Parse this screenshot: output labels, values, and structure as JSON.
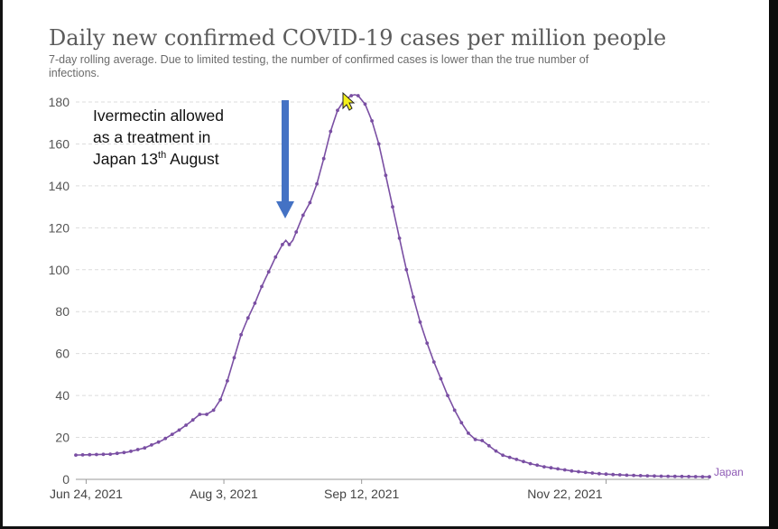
{
  "chart_data": {
    "type": "line",
    "title": "Daily new confirmed COVID-19 cases per million people",
    "subtitle_line1": "7-day rolling average. Due to limited testing, the number of confirmed cases is lower than the true number of",
    "subtitle_line2": "infections.",
    "x_start": "2021-06-21",
    "x_tick_labels": [
      "Jun 24, 2021",
      "Aug 3, 2021",
      "Sep 12, 2021",
      "Nov 22, 2021"
    ],
    "ylim": [
      0,
      180
    ],
    "y_ticks": [
      0,
      20,
      40,
      60,
      80,
      100,
      120,
      140,
      160,
      180
    ],
    "grid": true,
    "series": [
      {
        "name": "Japan",
        "color": "#7a4fa3",
        "points": [
          [
            0,
            11.6
          ],
          [
            10,
            12.0
          ],
          [
            15,
            13.0
          ],
          [
            20,
            15.0
          ],
          [
            25,
            18.5
          ],
          [
            30,
            23.5
          ],
          [
            33,
            27
          ],
          [
            36,
            31
          ],
          [
            38,
            31
          ],
          [
            40,
            33
          ],
          [
            42,
            38
          ],
          [
            44,
            47
          ],
          [
            46,
            58
          ],
          [
            48,
            69
          ],
          [
            50,
            77
          ],
          [
            52,
            84
          ],
          [
            54,
            92
          ],
          [
            56,
            99
          ],
          [
            58,
            106
          ],
          [
            60,
            112
          ],
          [
            61,
            114
          ],
          [
            62,
            112
          ],
          [
            63,
            114
          ],
          [
            64,
            118
          ],
          [
            66,
            126
          ],
          [
            68,
            132
          ],
          [
            70,
            141
          ],
          [
            72,
            153
          ],
          [
            74,
            166
          ],
          [
            76,
            176
          ],
          [
            78,
            181
          ],
          [
            80,
            183
          ],
          [
            81,
            183.5
          ],
          [
            82,
            183
          ],
          [
            84,
            179
          ],
          [
            86,
            171
          ],
          [
            88,
            160
          ],
          [
            90,
            145
          ],
          [
            92,
            130
          ],
          [
            94,
            115
          ],
          [
            96,
            100
          ],
          [
            98,
            87
          ],
          [
            100,
            75
          ],
          [
            102,
            65
          ],
          [
            104,
            56
          ],
          [
            106,
            48
          ],
          [
            108,
            40
          ],
          [
            110,
            33
          ],
          [
            112,
            27
          ],
          [
            114,
            22
          ],
          [
            116,
            19
          ],
          [
            118,
            18.5
          ],
          [
            120,
            16
          ],
          [
            122,
            13.5
          ],
          [
            124,
            11.5
          ],
          [
            128,
            9.5
          ],
          [
            132,
            7.5
          ],
          [
            136,
            6
          ],
          [
            140,
            5
          ],
          [
            144,
            4
          ],
          [
            148,
            3.3
          ],
          [
            152,
            2.7
          ],
          [
            156,
            2.3
          ],
          [
            160,
            2.0
          ],
          [
            165,
            1.7
          ],
          [
            170,
            1.5
          ],
          [
            175,
            1.4
          ],
          [
            180,
            1.3
          ],
          [
            184,
            1.2
          ]
        ]
      }
    ],
    "annotation_lines": [
      "Ivermectin allowed",
      "as a treatment in",
      "Japan 13",
      "th",
      " August"
    ],
    "annotation_date": "2021-08-13"
  }
}
